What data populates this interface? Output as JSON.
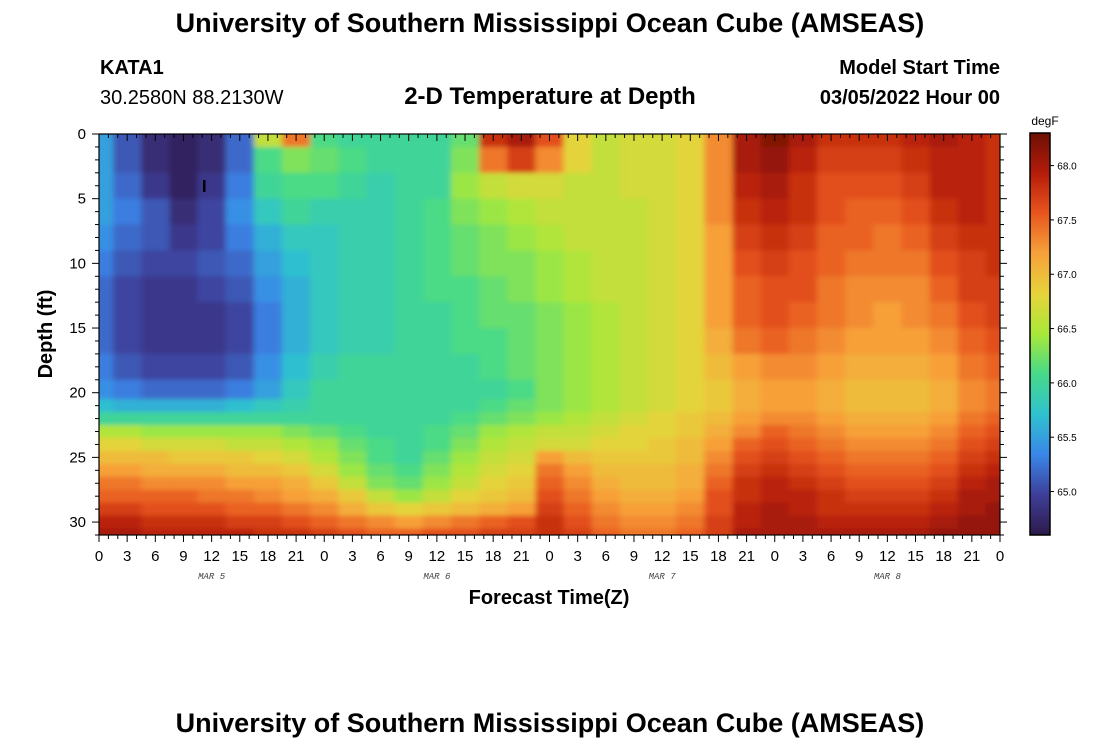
{
  "header": {
    "title": "University of Southern Mississippi Ocean Cube (AMSEAS)",
    "station": "KATA1",
    "coords": "30.2580N  88.2130W",
    "chart_title": "2-D Temperature at Depth",
    "model_label": "Model Start Time",
    "model_time": "03/05/2022 Hour 00"
  },
  "footer": {
    "title": "University of Southern Mississippi Ocean Cube (AMSEAS)"
  },
  "colors": {
    "colormap": [
      "#2e1a4a",
      "#3e3f9a",
      "#3a86e8",
      "#2fc2cf",
      "#46d98a",
      "#a8e83a",
      "#e7d33a",
      "#f7a23a",
      "#e8561e",
      "#b51c0a",
      "#6e0f05"
    ]
  },
  "chart_data": {
    "type": "heatmap",
    "xlabel": "Forecast Time(Z)",
    "ylabel": "Depth (ft)",
    "x_range_hours": [
      0,
      96
    ],
    "y_range_ft": [
      0,
      31
    ],
    "x_tick_labels": [
      "0",
      "3",
      "6",
      "9",
      "12",
      "15",
      "18",
      "21",
      "0",
      "3",
      "6",
      "9",
      "12",
      "15",
      "18",
      "21",
      "0",
      "3",
      "6",
      "9",
      "12",
      "15",
      "18",
      "21",
      "0",
      "3",
      "6",
      "9",
      "12",
      "15",
      "18",
      "21",
      "0"
    ],
    "date_labels": [
      "MAR 5",
      "MAR 6",
      "MAR 7",
      "MAR 8"
    ],
    "y_ticks": [
      0,
      5,
      10,
      15,
      20,
      25,
      30
    ],
    "colorbar": {
      "unit": "degF",
      "range": [
        64.6,
        68.3
      ],
      "ticks": [
        "65.0",
        "65.5",
        "66.0",
        "66.5",
        "67.0",
        "67.5",
        "68.0"
      ]
    },
    "grid": false,
    "column_hours": [
      0,
      3,
      6,
      9,
      12,
      15,
      18,
      21,
      24,
      27,
      30,
      33,
      36,
      39,
      42,
      45,
      48,
      51,
      54,
      57,
      60,
      63,
      66,
      69,
      72,
      75,
      78,
      81,
      84,
      87,
      90,
      93,
      96
    ],
    "row_depths_ft": [
      0,
      2,
      4,
      6,
      8,
      10,
      12,
      14,
      16,
      18,
      20,
      21,
      22,
      23,
      24,
      25,
      26,
      27,
      28,
      29,
      30,
      31
    ],
    "temperature_degF": [
      [
        65.5,
        65.1,
        64.8,
        64.7,
        64.8,
        65.2,
        66.6,
        67.4,
        66.1,
        66.0,
        66.0,
        66.0,
        66.0,
        66.2,
        67.8,
        68.0,
        67.6,
        66.8,
        66.6,
        66.7,
        66.7,
        66.8,
        67.3,
        68.0,
        68.2,
        68.0,
        67.8,
        67.8,
        67.8,
        67.9,
        68.0,
        67.9,
        67.8
      ],
      [
        65.5,
        65.1,
        64.8,
        64.7,
        64.8,
        65.2,
        66.1,
        66.3,
        66.2,
        66.1,
        66.0,
        66.0,
        66.0,
        66.3,
        67.4,
        67.7,
        67.3,
        66.8,
        66.6,
        66.7,
        66.7,
        66.8,
        67.3,
        68.0,
        68.1,
        67.9,
        67.7,
        67.7,
        67.7,
        67.8,
        67.9,
        67.9,
        67.8
      ],
      [
        65.5,
        65.2,
        64.9,
        64.7,
        64.9,
        65.3,
        66.0,
        66.1,
        66.1,
        66.0,
        65.9,
        66.0,
        66.0,
        66.4,
        66.6,
        66.7,
        66.7,
        66.6,
        66.6,
        66.7,
        66.7,
        66.8,
        67.3,
        67.9,
        68.0,
        67.8,
        67.6,
        67.6,
        67.6,
        67.7,
        67.9,
        67.9,
        67.8
      ],
      [
        65.5,
        65.3,
        65.1,
        64.8,
        65.0,
        65.4,
        65.8,
        66.0,
        65.9,
        65.9,
        65.9,
        66.0,
        66.1,
        66.3,
        66.4,
        66.5,
        66.6,
        66.6,
        66.6,
        66.6,
        66.7,
        66.8,
        67.3,
        67.8,
        67.9,
        67.8,
        67.6,
        67.5,
        67.5,
        67.6,
        67.8,
        67.9,
        67.8
      ],
      [
        65.4,
        65.2,
        65.1,
        64.9,
        65.0,
        65.3,
        65.6,
        65.8,
        65.8,
        65.9,
        65.9,
        66.0,
        66.1,
        66.2,
        66.3,
        66.4,
        66.5,
        66.6,
        66.6,
        66.6,
        66.7,
        66.8,
        67.2,
        67.7,
        67.8,
        67.7,
        67.5,
        67.5,
        67.4,
        67.5,
        67.7,
        67.8,
        67.8
      ],
      [
        65.3,
        65.1,
        65.0,
        65.0,
        65.1,
        65.2,
        65.5,
        65.7,
        65.8,
        65.9,
        65.9,
        66.0,
        66.1,
        66.2,
        66.3,
        66.3,
        66.4,
        66.5,
        66.6,
        66.6,
        66.7,
        66.8,
        67.2,
        67.6,
        67.7,
        67.6,
        67.5,
        67.4,
        67.4,
        67.4,
        67.6,
        67.7,
        67.8
      ],
      [
        65.2,
        65.0,
        64.9,
        64.9,
        65.0,
        65.1,
        65.4,
        65.6,
        65.8,
        65.9,
        65.9,
        66.0,
        66.1,
        66.1,
        66.2,
        66.3,
        66.4,
        66.5,
        66.6,
        66.6,
        66.7,
        66.8,
        67.2,
        67.5,
        67.6,
        67.6,
        67.4,
        67.3,
        67.3,
        67.3,
        67.5,
        67.7,
        67.7
      ],
      [
        65.2,
        65.0,
        64.9,
        64.9,
        64.9,
        65.0,
        65.3,
        65.6,
        65.8,
        65.9,
        65.9,
        66.0,
        66.0,
        66.1,
        66.2,
        66.2,
        66.3,
        66.4,
        66.5,
        66.6,
        66.7,
        66.8,
        67.2,
        67.5,
        67.6,
        67.5,
        67.4,
        67.3,
        67.2,
        67.3,
        67.4,
        67.6,
        67.7
      ],
      [
        65.2,
        65.0,
        64.9,
        64.9,
        64.9,
        65.0,
        65.3,
        65.6,
        65.8,
        65.9,
        65.9,
        66.0,
        66.0,
        66.1,
        66.1,
        66.2,
        66.3,
        66.4,
        66.5,
        66.6,
        66.7,
        66.8,
        67.1,
        67.4,
        67.5,
        67.4,
        67.3,
        67.2,
        67.2,
        67.2,
        67.3,
        67.5,
        67.6
      ],
      [
        65.3,
        65.1,
        65.0,
        65.0,
        65.0,
        65.1,
        65.4,
        65.7,
        65.9,
        66.0,
        66.0,
        66.0,
        66.0,
        66.0,
        66.1,
        66.2,
        66.3,
        66.4,
        66.5,
        66.6,
        66.7,
        66.8,
        67.0,
        67.2,
        67.3,
        67.3,
        67.2,
        67.1,
        67.1,
        67.1,
        67.2,
        67.4,
        67.5
      ],
      [
        65.4,
        65.3,
        65.2,
        65.2,
        65.2,
        65.3,
        65.5,
        65.8,
        66.0,
        66.0,
        66.0,
        66.0,
        66.0,
        66.0,
        66.0,
        66.1,
        66.3,
        66.4,
        66.5,
        66.6,
        66.7,
        66.8,
        66.9,
        67.1,
        67.2,
        67.2,
        67.1,
        67.0,
        67.0,
        67.0,
        67.1,
        67.3,
        67.4
      ],
      [
        65.7,
        65.6,
        65.6,
        65.6,
        65.6,
        65.7,
        65.8,
        65.9,
        66.0,
        66.0,
        66.0,
        66.0,
        66.0,
        66.0,
        66.1,
        66.2,
        66.3,
        66.4,
        66.5,
        66.6,
        66.7,
        66.8,
        66.9,
        67.1,
        67.2,
        67.2,
        67.1,
        67.0,
        67.0,
        67.0,
        67.1,
        67.3,
        67.4
      ],
      [
        66.0,
        66.0,
        66.0,
        66.0,
        66.0,
        66.0,
        66.0,
        66.0,
        66.0,
        66.0,
        66.0,
        66.0,
        66.0,
        66.1,
        66.2,
        66.3,
        66.4,
        66.5,
        66.6,
        66.7,
        66.8,
        66.9,
        67.0,
        67.2,
        67.3,
        67.3,
        67.2,
        67.1,
        67.1,
        67.1,
        67.2,
        67.4,
        67.5
      ],
      [
        66.5,
        66.5,
        66.4,
        66.4,
        66.4,
        66.4,
        66.4,
        66.3,
        66.2,
        66.1,
        66.0,
        66.0,
        66.1,
        66.2,
        66.4,
        66.5,
        66.6,
        66.6,
        66.7,
        66.8,
        66.8,
        66.9,
        67.1,
        67.3,
        67.5,
        67.4,
        67.3,
        67.2,
        67.2,
        67.2,
        67.3,
        67.5,
        67.6
      ],
      [
        66.8,
        66.8,
        66.7,
        66.7,
        66.7,
        66.6,
        66.6,
        66.5,
        66.4,
        66.2,
        66.1,
        66.0,
        66.1,
        66.3,
        66.5,
        66.6,
        66.7,
        66.7,
        66.8,
        66.8,
        66.9,
        67.0,
        67.2,
        67.5,
        67.6,
        67.5,
        67.4,
        67.3,
        67.3,
        67.3,
        67.4,
        67.6,
        67.7
      ],
      [
        67.0,
        67.0,
        67.0,
        66.9,
        66.9,
        66.9,
        66.8,
        66.7,
        66.5,
        66.3,
        66.1,
        66.0,
        66.2,
        66.4,
        66.6,
        66.7,
        67.2,
        67.0,
        66.9,
        66.9,
        66.9,
        67.0,
        67.3,
        67.6,
        67.7,
        67.6,
        67.5,
        67.4,
        67.4,
        67.4,
        67.5,
        67.7,
        67.8
      ],
      [
        67.2,
        67.2,
        67.1,
        67.1,
        67.1,
        67.0,
        67.0,
        66.9,
        66.7,
        66.4,
        66.2,
        66.1,
        66.3,
        66.5,
        66.7,
        66.8,
        67.4,
        67.2,
        67.0,
        67.0,
        67.0,
        67.1,
        67.4,
        67.7,
        67.8,
        67.7,
        67.6,
        67.5,
        67.5,
        67.5,
        67.6,
        67.8,
        67.9
      ],
      [
        67.4,
        67.4,
        67.3,
        67.3,
        67.3,
        67.2,
        67.2,
        67.1,
        66.9,
        66.6,
        66.3,
        66.2,
        66.4,
        66.6,
        66.8,
        66.9,
        67.5,
        67.3,
        67.1,
        67.0,
        67.0,
        67.1,
        67.5,
        67.8,
        67.9,
        67.8,
        67.7,
        67.6,
        67.6,
        67.6,
        67.7,
        67.9,
        68.0
      ],
      [
        67.5,
        67.5,
        67.5,
        67.5,
        67.4,
        67.4,
        67.3,
        67.2,
        67.1,
        66.9,
        66.6,
        66.4,
        66.6,
        66.8,
        66.9,
        67.0,
        67.6,
        67.4,
        67.2,
        67.1,
        67.1,
        67.2,
        67.6,
        67.8,
        67.9,
        67.9,
        67.8,
        67.7,
        67.7,
        67.7,
        67.8,
        68.0,
        68.0
      ],
      [
        67.7,
        67.7,
        67.6,
        67.6,
        67.6,
        67.5,
        67.5,
        67.4,
        67.3,
        67.1,
        66.9,
        66.8,
        66.9,
        67.0,
        67.1,
        67.2,
        67.7,
        67.5,
        67.3,
        67.2,
        67.2,
        67.3,
        67.6,
        67.9,
        68.0,
        67.9,
        67.8,
        67.8,
        67.8,
        67.8,
        67.9,
        68.0,
        68.1
      ],
      [
        67.9,
        67.9,
        67.8,
        67.8,
        67.8,
        67.7,
        67.7,
        67.6,
        67.5,
        67.4,
        67.3,
        67.2,
        67.3,
        67.4,
        67.5,
        67.6,
        67.8,
        67.6,
        67.4,
        67.3,
        67.3,
        67.4,
        67.7,
        67.9,
        68.0,
        68.0,
        67.9,
        67.9,
        67.9,
        67.9,
        68.0,
        68.1,
        68.1
      ],
      [
        68.0,
        68.0,
        67.9,
        67.9,
        67.9,
        67.9,
        67.8,
        67.8,
        67.7,
        67.6,
        67.5,
        67.5,
        67.6,
        67.6,
        67.7,
        67.7,
        67.8,
        67.7,
        67.5,
        67.4,
        67.4,
        67.5,
        67.7,
        68.0,
        68.0,
        68.0,
        68.0,
        68.0,
        68.0,
        68.0,
        68.1,
        68.1,
        68.1
      ]
    ]
  }
}
